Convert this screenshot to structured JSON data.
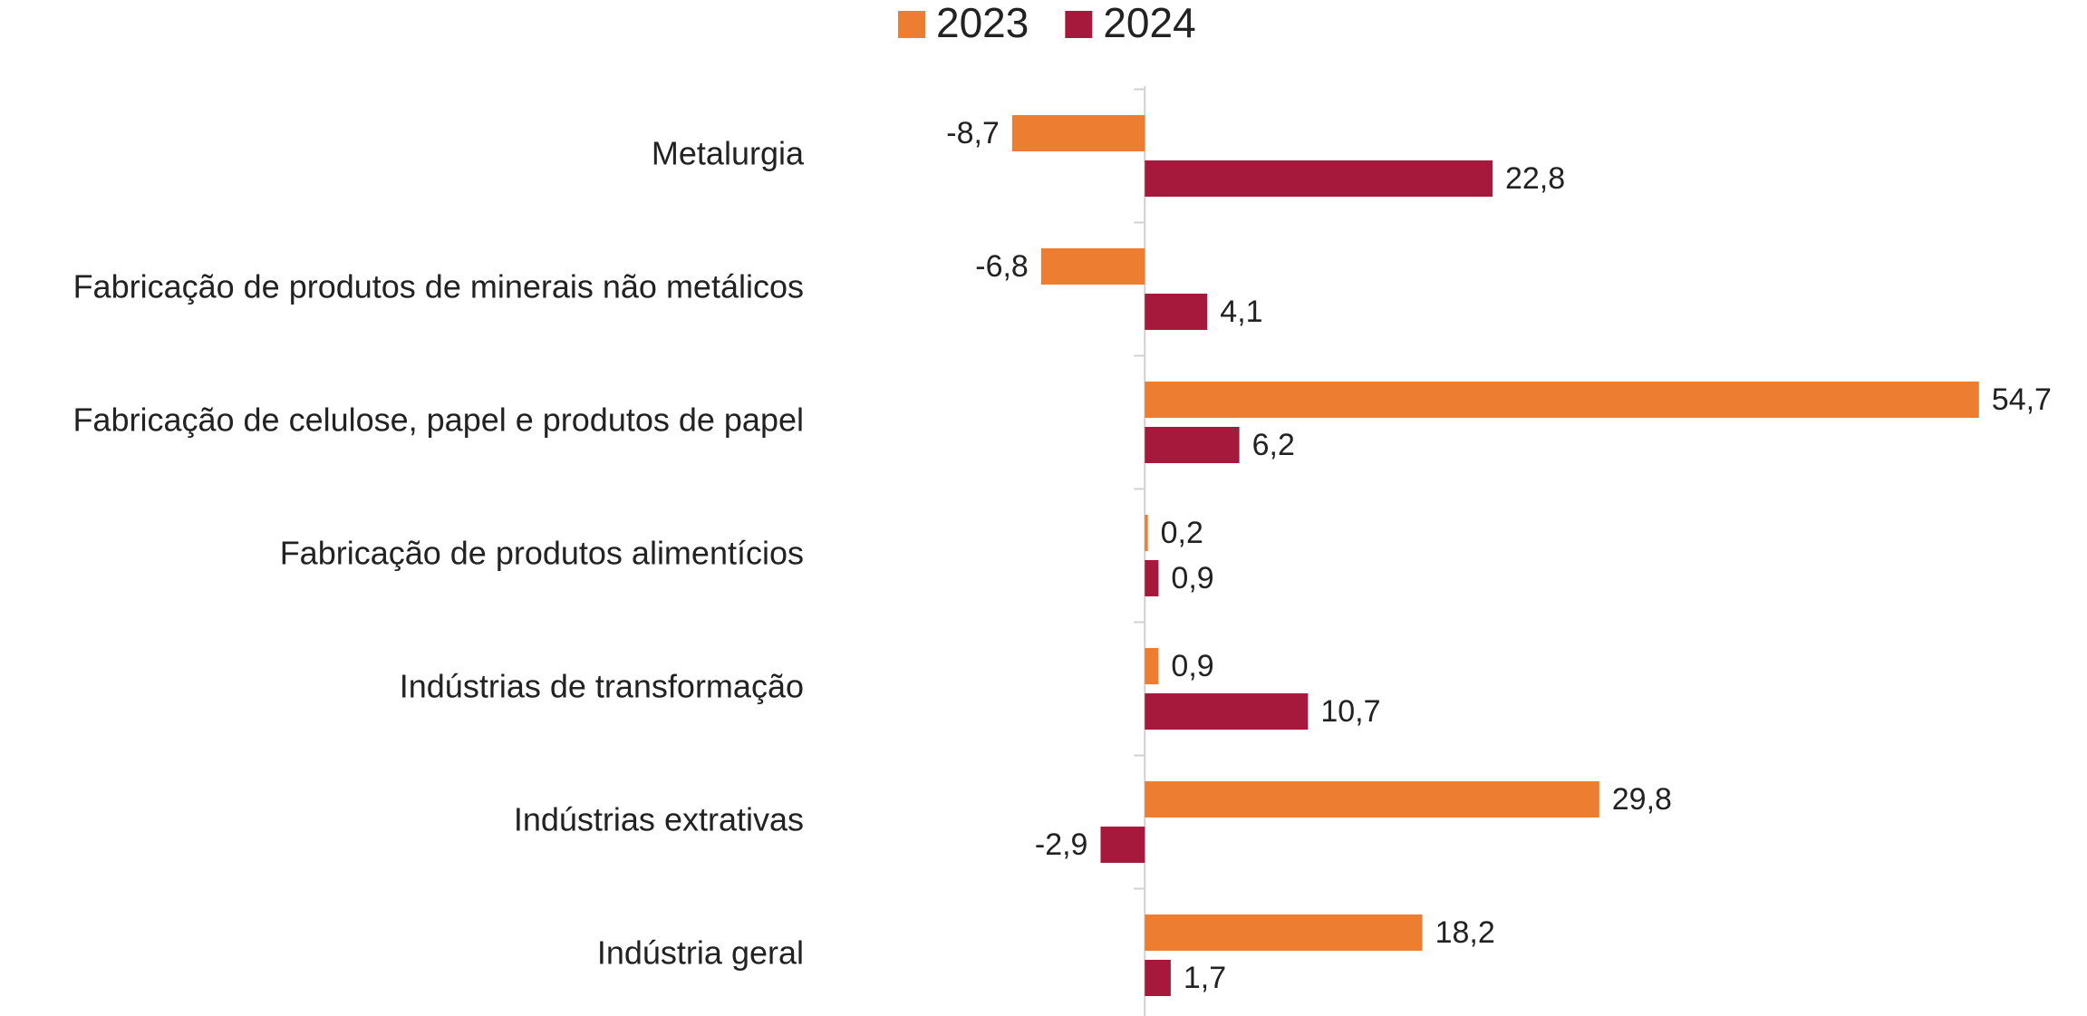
{
  "chart_data": {
    "type": "hbar",
    "categories": [
      "Metalurgia",
      "Fabricação de produtos de minerais não metálicos",
      "Fabricação de celulose, papel e produtos de papel",
      "Fabricação de produtos alimentícios",
      "Indústrias de transformação",
      "Indústrias extrativas",
      "Indústria geral"
    ],
    "series": [
      {
        "name": "2023",
        "color": "#ED7D31",
        "values": [
          -8.7,
          -6.8,
          54.7,
          0.2,
          0.9,
          29.8,
          18.2
        ],
        "value_labels": [
          "-8,7",
          "-6,8",
          "54,7",
          "0,2",
          "0,9",
          "29,8",
          "18,2"
        ]
      },
      {
        "name": "2024",
        "color": "#A6193C",
        "values": [
          22.8,
          4.1,
          6.2,
          0.9,
          10.7,
          -2.9,
          1.7
        ],
        "value_labels": [
          "22,8",
          "4,1",
          "6,2",
          "0,9",
          "10,7",
          "-2,9",
          "1,7"
        ]
      }
    ],
    "xlim": [
      -10,
      60
    ],
    "legend": "top"
  }
}
